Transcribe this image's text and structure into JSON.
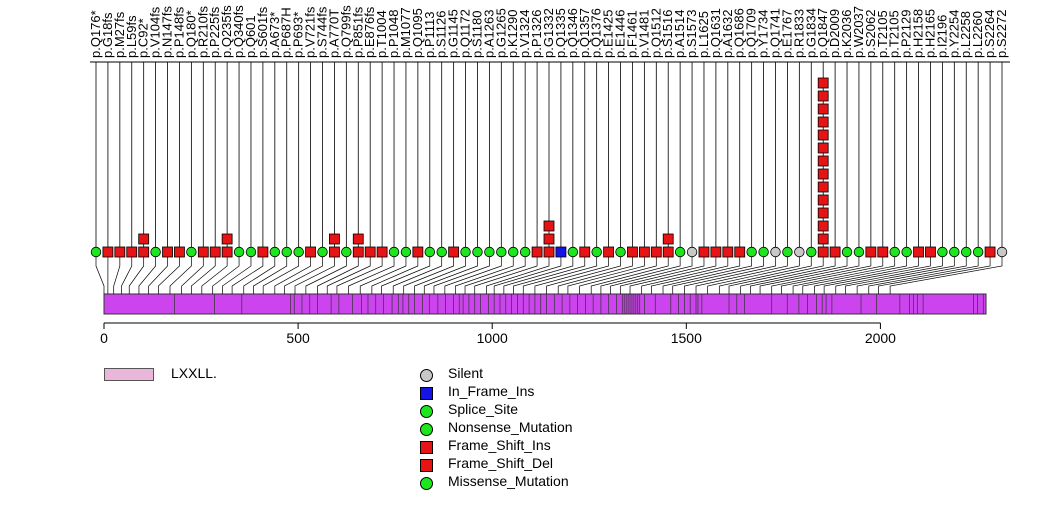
{
  "chart_data": {
    "type": "lollipop",
    "title": "",
    "xlabel": "",
    "ylabel": "",
    "xlim": [
      0,
      2290
    ],
    "ticks": [
      0,
      500,
      1000,
      1500,
      2000
    ],
    "tick_labels": [
      "0",
      "500",
      "1000",
      "1500",
      "2000"
    ],
    "protein_length": 2272,
    "domains": [
      {
        "name": "LXXLL.",
        "color": "#eab6d9"
      }
    ],
    "domain_label": "LXXLL.",
    "mutation_types": [
      {
        "name": "Silent",
        "shape": "circle",
        "color": "#c8c8c8"
      },
      {
        "name": "In_Frame_Ins",
        "shape": "square",
        "color": "#1414e6"
      },
      {
        "name": "Splice_Site",
        "shape": "circle",
        "color": "#1ee61e"
      },
      {
        "name": "Nonsense_Mutation",
        "shape": "circle",
        "color": "#1ee61e"
      },
      {
        "name": "Frame_Shift_Ins",
        "shape": "square",
        "color": "#e61414"
      },
      {
        "name": "Frame_Shift_Del",
        "shape": "square",
        "color": "#e61414"
      },
      {
        "name": "Missense_Mutation",
        "shape": "circle",
        "color": "#1ee61e"
      }
    ],
    "motif_positions": [
      182,
      285,
      355,
      480,
      490,
      510,
      530,
      550,
      585,
      605,
      640,
      663,
      680,
      700,
      720,
      742,
      758,
      770,
      785,
      800,
      820,
      838,
      860,
      880,
      900,
      915,
      925,
      940,
      955,
      970,
      990,
      1005,
      1020,
      1035,
      1050,
      1065,
      1080,
      1095,
      1110,
      1125,
      1140,
      1160,
      1180,
      1200,
      1220,
      1240,
      1260,
      1280,
      1300,
      1320,
      1335,
      1340,
      1345,
      1350,
      1355,
      1360,
      1365,
      1370,
      1375,
      1380,
      1392,
      1420,
      1460,
      1480,
      1495,
      1510,
      1525,
      1530,
      1540,
      1610,
      1630,
      1650,
      1720,
      1760,
      1790,
      1812,
      1835,
      1850,
      1860,
      1875,
      1950,
      1990,
      2050,
      2075,
      2085,
      2095,
      2110,
      2240,
      2250,
      2265
    ],
    "mutations": [
      {
        "label": "p.Q176*",
        "x": 0,
        "type": "Nonsense_Mutation",
        "count": 1
      },
      {
        "label": "p.G18fs",
        "x": 10,
        "type": "Frame_Shift_Del",
        "count": 1
      },
      {
        "label": "p.M27fs",
        "x": 25,
        "type": "Frame_Shift_Del",
        "count": 1
      },
      {
        "label": "p.L59fs",
        "x": 45,
        "type": "Frame_Shift_Del",
        "count": 1
      },
      {
        "label": "p.C92*",
        "x": 65,
        "type": "Frame_Shift_Del",
        "count": 2
      },
      {
        "label": "p.V104fs",
        "x": 90,
        "type": "Nonsense_Mutation",
        "count": 1
      },
      {
        "label": "p.N147fs",
        "x": 115,
        "type": "Frame_Shift_Del",
        "count": 1
      },
      {
        "label": "p.P148fs",
        "x": 140,
        "type": "Frame_Shift_Del",
        "count": 1
      },
      {
        "label": "p.Q180*",
        "x": 170,
        "type": "Nonsense_Mutation",
        "count": 1
      },
      {
        "label": "p.R210fs",
        "x": 200,
        "type": "Frame_Shift_Del",
        "count": 1
      },
      {
        "label": "p.P225fs",
        "x": 225,
        "type": "Frame_Shift_Del",
        "count": 1
      },
      {
        "label": "p.Q235fs",
        "x": 252,
        "type": "Frame_Shift_Del",
        "count": 2
      },
      {
        "label": "p.Q340fs",
        "x": 280,
        "type": "Nonsense_Mutation",
        "count": 1
      },
      {
        "label": "p.Q601",
        "x": 305,
        "type": "Nonsense_Mutation",
        "count": 1
      },
      {
        "label": "p.S601fs",
        "x": 330,
        "type": "Frame_Shift_Del",
        "count": 1
      },
      {
        "label": "p.A673*",
        "x": 360,
        "type": "Nonsense_Mutation",
        "count": 1
      },
      {
        "label": "p.P687H",
        "x": 385,
        "type": "Missense_Mutation",
        "count": 1
      },
      {
        "label": "p.P693*",
        "x": 410,
        "type": "Nonsense_Mutation",
        "count": 1
      },
      {
        "label": "p.V721fs",
        "x": 440,
        "type": "Frame_Shift_Del",
        "count": 1
      },
      {
        "label": "p.S744fs",
        "x": 465,
        "type": "Missense_Mutation",
        "count": 1
      },
      {
        "label": "p.A770T",
        "x": 492,
        "type": "Frame_Shift_Del",
        "count": 2
      },
      {
        "label": "p.Q799fs",
        "x": 520,
        "type": "Missense_Mutation",
        "count": 1
      },
      {
        "label": "p.P851fs",
        "x": 550,
        "type": "Frame_Shift_Del",
        "count": 2
      },
      {
        "label": "p.E876fs",
        "x": 575,
        "type": "Frame_Shift_Del",
        "count": 1
      },
      {
        "label": "p.T1004",
        "x": 600,
        "type": "Frame_Shift_Del",
        "count": 1
      },
      {
        "label": "p.P1048",
        "x": 630,
        "type": "Missense_Mutation",
        "count": 1
      },
      {
        "label": "p.M1077",
        "x": 660,
        "type": "Nonsense_Mutation",
        "count": 1
      },
      {
        "label": "p.Q1095",
        "x": 690,
        "type": "Frame_Shift_Del",
        "count": 1
      },
      {
        "label": "p.P1113",
        "x": 715,
        "type": "Missense_Mutation",
        "count": 1
      },
      {
        "label": "p.S1126",
        "x": 745,
        "type": "Nonsense_Mutation",
        "count": 1
      },
      {
        "label": "p.G1145",
        "x": 772,
        "type": "Frame_Shift_Del",
        "count": 1
      },
      {
        "label": "p.Q1172",
        "x": 800,
        "type": "Missense_Mutation",
        "count": 1
      },
      {
        "label": "p.S1180",
        "x": 825,
        "type": "Missense_Mutation",
        "count": 1
      },
      {
        "label": "p.A1263",
        "x": 850,
        "type": "Missense_Mutation",
        "count": 1
      },
      {
        "label": "p.G1265",
        "x": 878,
        "type": "Missense_Mutation",
        "count": 1
      },
      {
        "label": "p.K1290",
        "x": 905,
        "type": "Missense_Mutation",
        "count": 1
      },
      {
        "label": "p.V1324",
        "x": 930,
        "type": "Missense_Mutation",
        "count": 1
      },
      {
        "label": "p.P1326",
        "x": 955,
        "type": "Frame_Shift_Del",
        "count": 1
      },
      {
        "label": "p.G1332",
        "x": 985,
        "type": "Frame_Shift_Del",
        "count": 3
      },
      {
        "label": "p.Q1335",
        "x": 1005,
        "type": "In_Frame_Ins",
        "count": 1
      },
      {
        "label": "p.Q1346",
        "x": 1030,
        "type": "Missense_Mutation",
        "count": 1
      },
      {
        "label": "p.Q1357",
        "x": 1055,
        "type": "Frame_Shift_Del",
        "count": 1
      },
      {
        "label": "p.Q1376",
        "x": 1080,
        "type": "Missense_Mutation",
        "count": 1
      },
      {
        "label": "p.E1425",
        "x": 1110,
        "type": "Frame_Shift_Del",
        "count": 1
      },
      {
        "label": "p.E1446",
        "x": 1140,
        "type": "Missense_Mutation",
        "count": 1
      },
      {
        "label": "p.F1461",
        "x": 1170,
        "type": "Frame_Shift_Del",
        "count": 1
      },
      {
        "label": "p.V1481",
        "x": 1195,
        "type": "Frame_Shift_Del",
        "count": 1
      },
      {
        "label": "p.Q1512",
        "x": 1225,
        "type": "Frame_Shift_Del",
        "count": 1
      },
      {
        "label": "p.S1516",
        "x": 1255,
        "type": "Frame_Shift_Del",
        "count": 2
      },
      {
        "label": "p.A1514",
        "x": 1280,
        "type": "Missense_Mutation",
        "count": 1
      },
      {
        "label": "p.S1573",
        "x": 1305,
        "type": "Silent",
        "count": 1
      },
      {
        "label": "p.L1625",
        "x": 1330,
        "type": "Frame_Shift_Del",
        "count": 1
      },
      {
        "label": "p.Q1631",
        "x": 1355,
        "type": "Frame_Shift_Del",
        "count": 1
      },
      {
        "label": "p.A1632",
        "x": 1385,
        "type": "Frame_Shift_Del",
        "count": 1
      },
      {
        "label": "p.Q1686",
        "x": 1410,
        "type": "Frame_Shift_Del",
        "count": 1
      },
      {
        "label": "p.Q1709",
        "x": 1440,
        "type": "Missense_Mutation",
        "count": 1
      },
      {
        "label": "p.Y1734",
        "x": 1465,
        "type": "Missense_Mutation",
        "count": 1
      },
      {
        "label": "p.Q1741",
        "x": 1495,
        "type": "Silent",
        "count": 1
      },
      {
        "label": "p.E1767",
        "x": 1525,
        "type": "Missense_Mutation",
        "count": 1
      },
      {
        "label": "p.R1833",
        "x": 1555,
        "type": "Silent",
        "count": 1
      },
      {
        "label": "p.G1834",
        "x": 1585,
        "type": "Missense_Mutation",
        "count": 1
      },
      {
        "label": "p.Q1847",
        "x": 1610,
        "type": "Frame_Shift_Del",
        "count": 14
      },
      {
        "label": "p.D2009",
        "x": 1640,
        "type": "Frame_Shift_Del",
        "count": 1
      },
      {
        "label": "p.K2036",
        "x": 1665,
        "type": "Missense_Mutation",
        "count": 1
      },
      {
        "label": "p.W2037",
        "x": 1690,
        "type": "Missense_Mutation",
        "count": 1
      },
      {
        "label": "p.S2062",
        "x": 1720,
        "type": "Frame_Shift_Del",
        "count": 1
      },
      {
        "label": "p.T2105",
        "x": 1745,
        "type": "Frame_Shift_Del",
        "count": 1
      },
      {
        "label": "p.T2105",
        "x": 1775,
        "type": "Missense_Mutation",
        "count": 1
      },
      {
        "label": "p.P2129",
        "x": 1800,
        "type": "Missense_Mutation",
        "count": 1
      },
      {
        "label": "p.H2158",
        "x": 1830,
        "type": "Frame_Shift_Del",
        "count": 1
      },
      {
        "label": "p.H2165",
        "x": 1855,
        "type": "Frame_Shift_Del",
        "count": 1
      },
      {
        "label": "p.I2196",
        "x": 1885,
        "type": "Missense_Mutation",
        "count": 1
      },
      {
        "label": "p.Y2254",
        "x": 1910,
        "type": "Missense_Mutation",
        "count": 1
      },
      {
        "label": "p.L2258",
        "x": 1940,
        "type": "Missense_Mutation",
        "count": 1
      },
      {
        "label": "p.L2260",
        "x": 1970,
        "type": "Missense_Mutation",
        "count": 1
      },
      {
        "label": "p.S2264",
        "x": 1995,
        "type": "Frame_Shift_Del",
        "count": 1
      },
      {
        "label": "p.S2272",
        "x": 2025,
        "type": "Silent",
        "count": 1
      }
    ]
  }
}
